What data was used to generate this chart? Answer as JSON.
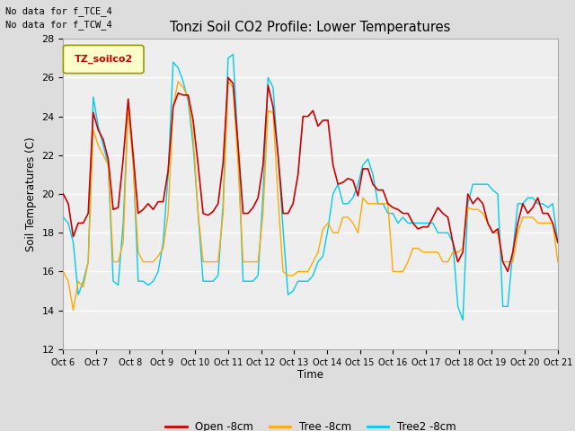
{
  "title": "Tonzi Soil CO2 Profile: Lower Temperatures",
  "ylabel": "Soil Temperatures (C)",
  "xlabel": "Time",
  "top_left_text_line1": "No data for f_TCE_4",
  "top_left_text_line2": "No data for f_TCW_4",
  "legend_label": "TZ_soilco2",
  "ylim": [
    12,
    28
  ],
  "yticks": [
    12,
    14,
    16,
    18,
    20,
    22,
    24,
    26,
    28
  ],
  "xtick_labels": [
    "Oct 6",
    "Oct 7",
    " Oct 8",
    "Oct 9",
    "Oct 10",
    "Oct 11",
    "Oct 12",
    "Oct 13",
    "Oct 14",
    "Oct 15",
    "Oct 16",
    "Oct 17",
    "Oct 18",
    "Oct 19",
    "Oct 20",
    "Oct 21"
  ],
  "line_colors": {
    "open": "#cc0000",
    "tree": "#ffaa00",
    "tree2": "#00ccee"
  },
  "line_labels": [
    "Open -8cm",
    "Tree -8cm",
    "Tree2 -8cm"
  ],
  "background_color": "#dddddd",
  "plot_bg_color": "#eeeeee",
  "grid_color": "#ffffff",
  "open_data": [
    20.0,
    19.5,
    17.8,
    18.5,
    18.5,
    19.0,
    24.2,
    23.3,
    22.8,
    21.8,
    19.2,
    19.3,
    21.8,
    24.9,
    22.0,
    19.0,
    19.2,
    19.5,
    19.2,
    19.6,
    19.6,
    21.2,
    24.5,
    25.2,
    25.1,
    25.1,
    23.8,
    21.5,
    19.0,
    18.9,
    19.1,
    19.5,
    21.6,
    26.0,
    25.7,
    22.5,
    19.0,
    19.0,
    19.3,
    19.8,
    21.5,
    25.6,
    24.5,
    22.0,
    19.0,
    19.0,
    19.5,
    21.0,
    24.0,
    24.0,
    24.3,
    23.5,
    23.8,
    23.8,
    21.5,
    20.5,
    20.6,
    20.8,
    20.7,
    19.9,
    21.3,
    21.3,
    20.5,
    20.2,
    20.2,
    19.5,
    19.3,
    19.2,
    19.0,
    19.0,
    18.5,
    18.2,
    18.3,
    18.3,
    18.8,
    19.3,
    19.0,
    18.8,
    17.5,
    16.5,
    17.0,
    20.0,
    19.5,
    19.8,
    19.5,
    18.5,
    18.0,
    18.2,
    16.5,
    16.0,
    17.0,
    18.5,
    19.5,
    19.0,
    19.3,
    19.8,
    19.0,
    19.0,
    18.5,
    17.5
  ],
  "tree_data": [
    16.0,
    15.5,
    14.0,
    15.5,
    15.2,
    16.5,
    23.3,
    22.5,
    22.0,
    21.5,
    16.5,
    16.5,
    17.5,
    24.5,
    21.5,
    17.0,
    16.5,
    16.5,
    16.5,
    16.8,
    17.2,
    19.0,
    24.5,
    25.8,
    25.5,
    25.0,
    23.0,
    19.0,
    16.5,
    16.5,
    16.5,
    16.5,
    19.0,
    25.8,
    25.5,
    21.5,
    16.5,
    16.5,
    16.5,
    16.5,
    19.0,
    24.3,
    24.2,
    19.8,
    16.0,
    15.8,
    15.8,
    16.0,
    16.0,
    16.0,
    16.5,
    17.0,
    18.2,
    18.5,
    18.0,
    18.0,
    18.8,
    18.8,
    18.5,
    18.0,
    19.8,
    19.5,
    19.5,
    19.5,
    19.5,
    19.5,
    16.0,
    16.0,
    16.0,
    16.5,
    17.2,
    17.2,
    17.0,
    17.0,
    17.0,
    17.0,
    16.5,
    16.5,
    17.0,
    17.0,
    17.2,
    19.3,
    19.2,
    19.2,
    19.0,
    18.5,
    18.0,
    18.0,
    16.5,
    16.5,
    16.5,
    18.0,
    18.8,
    18.8,
    18.8,
    18.5,
    18.5,
    18.5,
    18.5,
    16.5
  ],
  "tree2_data": [
    18.8,
    18.5,
    17.5,
    14.8,
    15.5,
    16.5,
    25.0,
    23.5,
    22.5,
    21.5,
    15.5,
    15.3,
    18.5,
    24.5,
    21.8,
    15.5,
    15.5,
    15.3,
    15.5,
    16.0,
    17.5,
    21.0,
    26.8,
    26.5,
    25.8,
    24.8,
    22.5,
    19.0,
    15.5,
    15.5,
    15.5,
    15.8,
    19.5,
    27.0,
    27.2,
    22.5,
    15.5,
    15.5,
    15.5,
    15.8,
    20.0,
    26.0,
    25.5,
    22.0,
    18.2,
    14.8,
    15.0,
    15.5,
    15.5,
    15.5,
    15.8,
    16.5,
    16.8,
    18.2,
    20.0,
    20.5,
    19.5,
    19.5,
    19.8,
    20.5,
    21.5,
    21.8,
    21.0,
    19.5,
    19.5,
    19.0,
    19.0,
    18.5,
    18.8,
    18.5,
    18.5,
    18.5,
    18.5,
    18.5,
    18.5,
    18.0,
    18.0,
    18.0,
    17.5,
    14.2,
    13.5,
    19.5,
    20.5,
    20.5,
    20.5,
    20.5,
    20.2,
    20.0,
    14.2,
    14.2,
    17.0,
    19.5,
    19.5,
    19.8,
    19.8,
    19.5,
    19.5,
    19.3,
    19.5,
    17.5
  ]
}
